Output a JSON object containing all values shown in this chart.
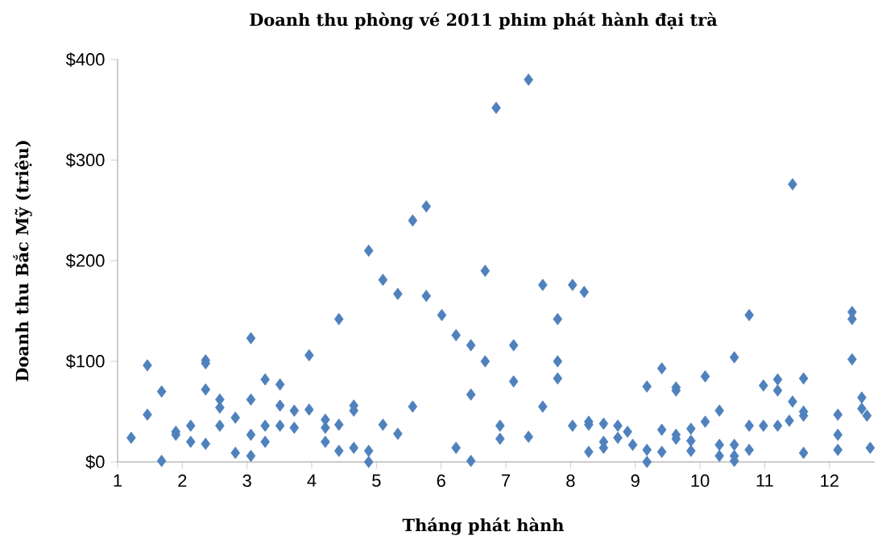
{
  "chart_data": {
    "type": "scatter",
    "title": "Doanh thu phòng vé 2011 phim phát hành đại trà",
    "xlabel": "Tháng phát hành",
    "ylabel": "Doanh thu Bắc Mỹ (triệu)",
    "color": "#4f81bd",
    "marker": "diamond",
    "grid": false,
    "xlim": [
      1,
      12.7
    ],
    "xticks": [
      1,
      2,
      3,
      4,
      5,
      6,
      7,
      8,
      9,
      10,
      11,
      12
    ],
    "ylim": [
      0,
      400
    ],
    "yticks": [
      {
        "value": 0,
        "label": "$0"
      },
      {
        "value": 100,
        "label": "$100"
      },
      {
        "value": 200,
        "label": "$200"
      },
      {
        "value": 300,
        "label": "$300"
      },
      {
        "value": 400,
        "label": "$400"
      }
    ],
    "x": [
      1.21,
      1.46,
      1.46,
      1.68,
      1.68,
      1.9,
      1.9,
      2.13,
      2.13,
      2.36,
      2.36,
      2.36,
      2.36,
      2.58,
      2.58,
      2.58,
      2.82,
      2.82,
      3.06,
      3.06,
      3.06,
      3.06,
      3.28,
      3.28,
      3.28,
      3.51,
      3.51,
      3.51,
      3.73,
      3.73,
      3.96,
      3.96,
      4.21,
      4.21,
      4.21,
      4.42,
      4.42,
      4.42,
      4.65,
      4.65,
      4.65,
      4.88,
      4.88,
      4.88,
      5.1,
      5.1,
      5.33,
      5.33,
      5.56,
      5.56,
      5.77,
      5.77,
      6.01,
      6.23,
      6.23,
      6.46,
      6.46,
      6.46,
      6.68,
      6.68,
      6.85,
      6.91,
      6.91,
      7.12,
      7.12,
      7.35,
      7.35,
      7.57,
      7.57,
      7.8,
      7.8,
      7.8,
      8.03,
      8.03,
      8.21,
      8.28,
      8.28,
      8.28,
      8.51,
      8.51,
      8.51,
      8.73,
      8.73,
      8.88,
      8.96,
      9.18,
      9.18,
      9.18,
      9.41,
      9.41,
      9.41,
      9.63,
      9.63,
      9.63,
      9.63,
      9.86,
      9.86,
      9.86,
      10.08,
      10.08,
      10.3,
      10.3,
      10.3,
      10.53,
      10.53,
      10.53,
      10.53,
      10.76,
      10.76,
      10.76,
      10.98,
      10.98,
      11.2,
      11.2,
      11.2,
      11.43,
      11.43,
      11.38,
      11.6,
      11.6,
      11.6,
      11.6,
      12.13,
      12.13,
      12.13,
      12.35,
      12.35,
      12.35,
      12.5,
      12.5,
      12.58,
      12.63
    ],
    "values": [
      24,
      96,
      47,
      70,
      1,
      30,
      27,
      36,
      20,
      101,
      98,
      72,
      18,
      62,
      54,
      36,
      44,
      9,
      123,
      62,
      27,
      6,
      82,
      36,
      20,
      77,
      56,
      36,
      51,
      34,
      106,
      52,
      42,
      34,
      20,
      142,
      37,
      11,
      56,
      51,
      14,
      210,
      11,
      0,
      181,
      37,
      167,
      28,
      240,
      55,
      254,
      165,
      146,
      126,
      14,
      116,
      67,
      1,
      190,
      100,
      352,
      36,
      23,
      116,
      80,
      380,
      25,
      176,
      55,
      142,
      100,
      83,
      176,
      36,
      169,
      40,
      37,
      10,
      38,
      20,
      14,
      36,
      24,
      30,
      17,
      75,
      12,
      0,
      93,
      32,
      10,
      74,
      71,
      27,
      23,
      33,
      21,
      11,
      85,
      40,
      51,
      17,
      6,
      104,
      17,
      6,
      1,
      146,
      36,
      12,
      76,
      36,
      82,
      71,
      36,
      276,
      60,
      41,
      83,
      50,
      46,
      9,
      47,
      27,
      12,
      149,
      142,
      102,
      64,
      53,
      46,
      14
    ]
  }
}
